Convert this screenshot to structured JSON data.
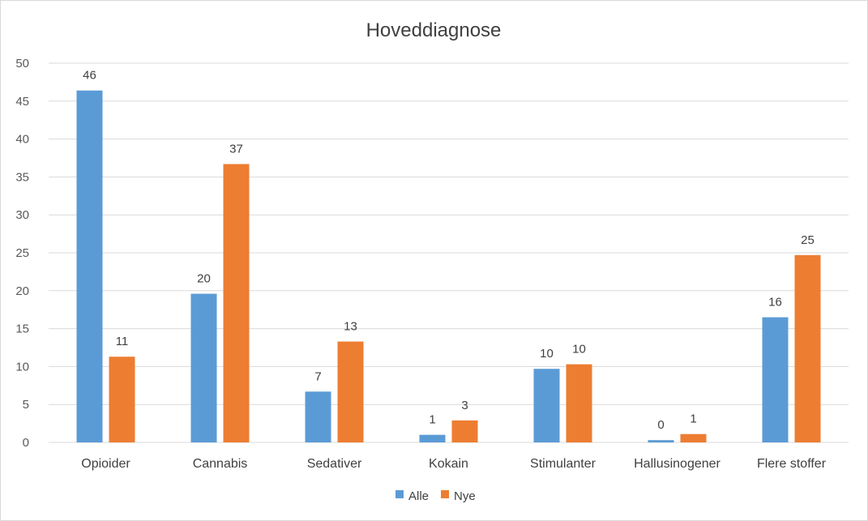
{
  "chart_data": {
    "type": "bar",
    "title": "Hoveddiagnose",
    "xlabel": "",
    "ylabel": "",
    "ylim": [
      0,
      50
    ],
    "yticks": [
      0,
      5,
      10,
      15,
      20,
      25,
      30,
      35,
      40,
      45,
      50
    ],
    "grid": true,
    "legend_position": "bottom",
    "categories": [
      "Opioider",
      "Cannabis",
      "Sedativer",
      "Kokain",
      "Stimulanter",
      "Hallusinogener",
      "Flere stoffer"
    ],
    "series": [
      {
        "name": "Alle",
        "color": "#5b9bd5",
        "values": [
          46.4,
          19.6,
          6.7,
          1.0,
          9.7,
          0.3,
          16.5
        ],
        "labels": [
          "46",
          "20",
          "7",
          "1",
          "10",
          "0",
          "16"
        ]
      },
      {
        "name": "Nye",
        "color": "#ed7d31",
        "values": [
          11.3,
          36.7,
          13.3,
          2.9,
          10.3,
          1.1,
          24.7
        ],
        "labels": [
          "11",
          "37",
          "13",
          "3",
          "10",
          "1",
          "25"
        ]
      }
    ]
  }
}
